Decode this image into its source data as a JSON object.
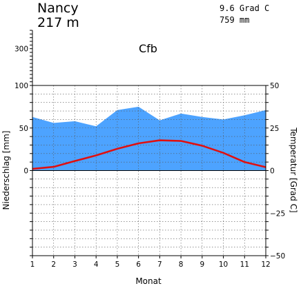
{
  "header": {
    "station": "Nancy",
    "elevation": "217 m",
    "mean_temperature": "9.6 Grad C",
    "annual_precipitation": "759 mm",
    "climate_class": "Cfb"
  },
  "chart_data": {
    "type": "area",
    "xlabel": "Monat",
    "ylabel_left": "Niederschlag [mm]",
    "ylabel_right": "Temperatur [Grad C]",
    "categories": [
      1,
      2,
      3,
      4,
      5,
      6,
      7,
      8,
      9,
      10,
      11,
      12
    ],
    "left_axis": {
      "ticks": [
        0,
        50,
        100
      ],
      "upper_ticks": [
        300
      ],
      "range": [
        -100,
        100
      ],
      "upper_range": [
        100,
        400
      ]
    },
    "right_axis": {
      "ticks": [
        -50,
        -25,
        0,
        25,
        50
      ],
      "range": [
        -50,
        50
      ]
    },
    "grid": true,
    "series": [
      {
        "type": "area",
        "axis": "left",
        "color": "#4da3ff",
        "values": [
          63,
          56,
          58,
          52,
          71,
          75,
          59,
          67,
          63,
          60,
          65,
          71
        ]
      },
      {
        "type": "line",
        "axis": "right",
        "color": "#e01010",
        "values": [
          1.0,
          2.2,
          5.6,
          8.9,
          12.8,
          16.0,
          17.8,
          17.4,
          14.6,
          10.4,
          5.0,
          2.0
        ]
      }
    ]
  }
}
